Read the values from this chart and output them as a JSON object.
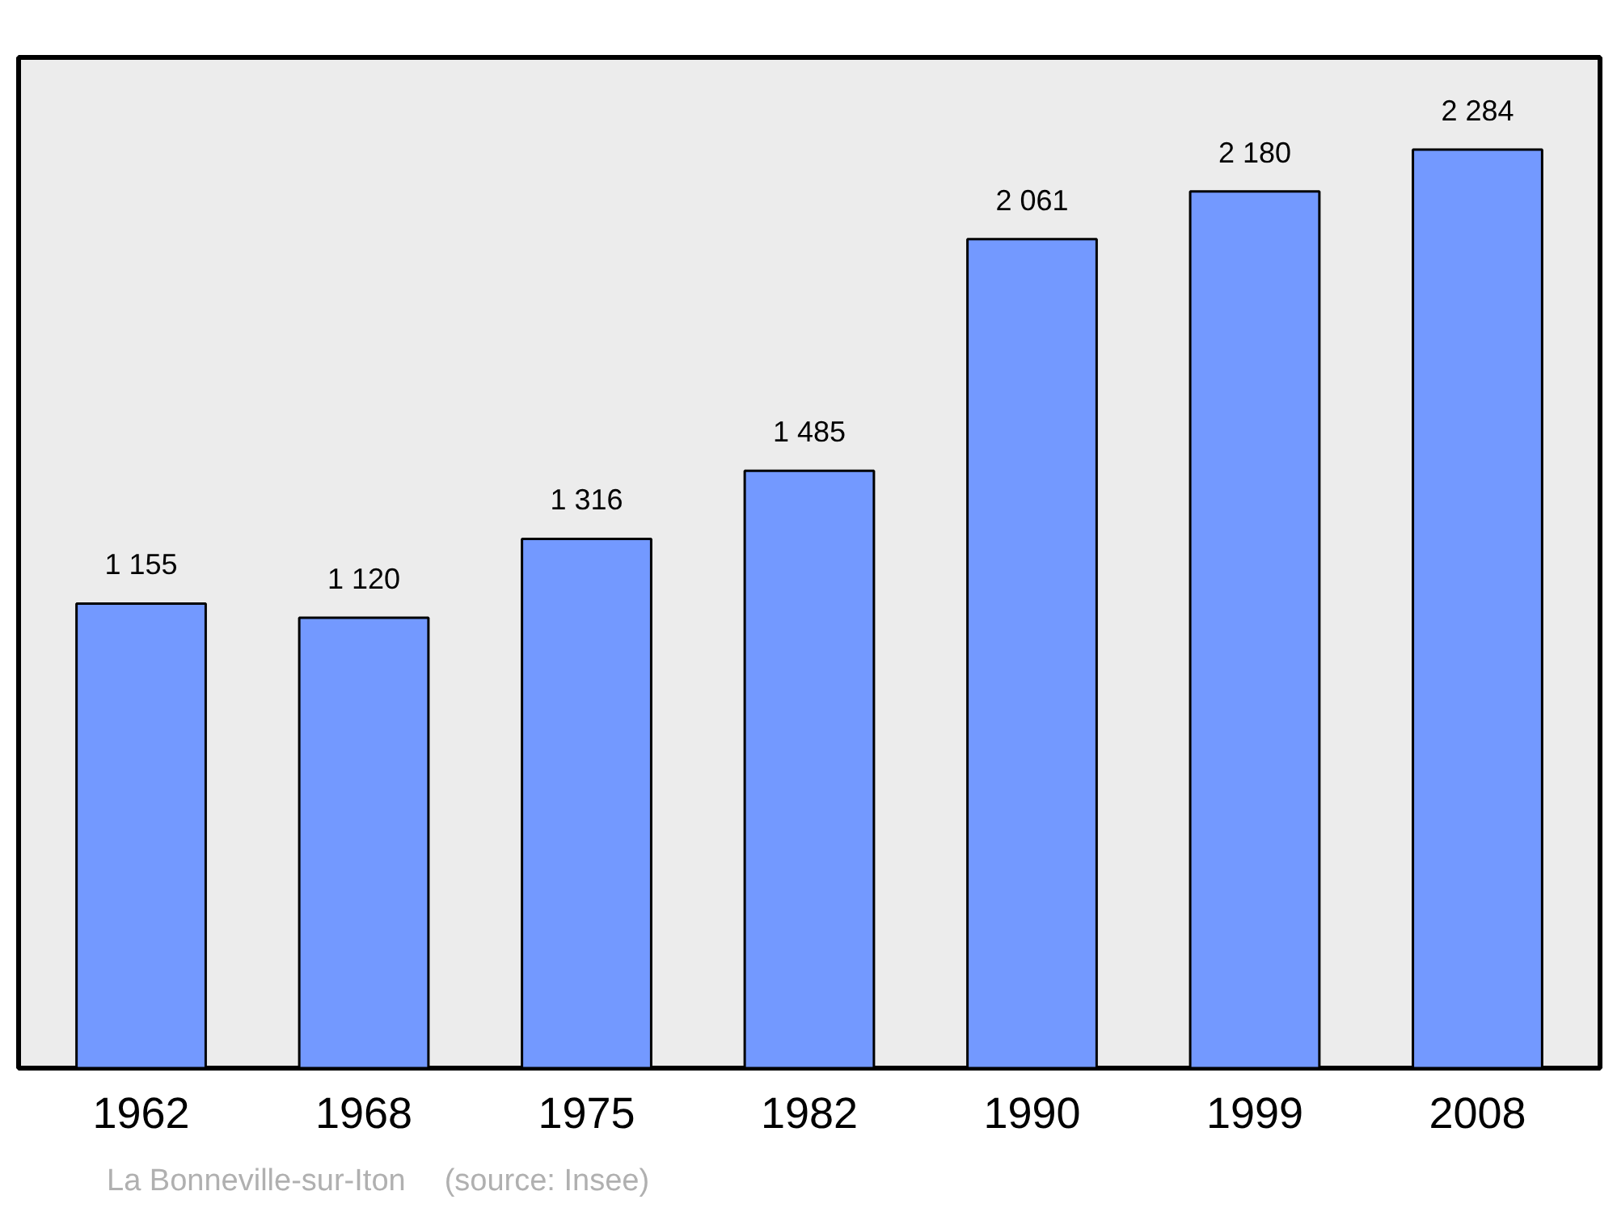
{
  "chart_data": {
    "type": "bar",
    "categories": [
      "1962",
      "1968",
      "1975",
      "1982",
      "1990",
      "1999",
      "2008"
    ],
    "values": [
      1155,
      1120,
      1316,
      1485,
      2061,
      2180,
      2284
    ],
    "value_labels": [
      "1 155",
      "1 120",
      "1 316",
      "1 485",
      "2 061",
      "2 180",
      "2 284"
    ],
    "color": "#7399ff",
    "ylim": [
      0,
      2513
    ],
    "tick_labels": "x",
    "grid": false,
    "annotations": [
      "La Bonneville-sur-Iton",
      "(source: Insee)"
    ]
  }
}
